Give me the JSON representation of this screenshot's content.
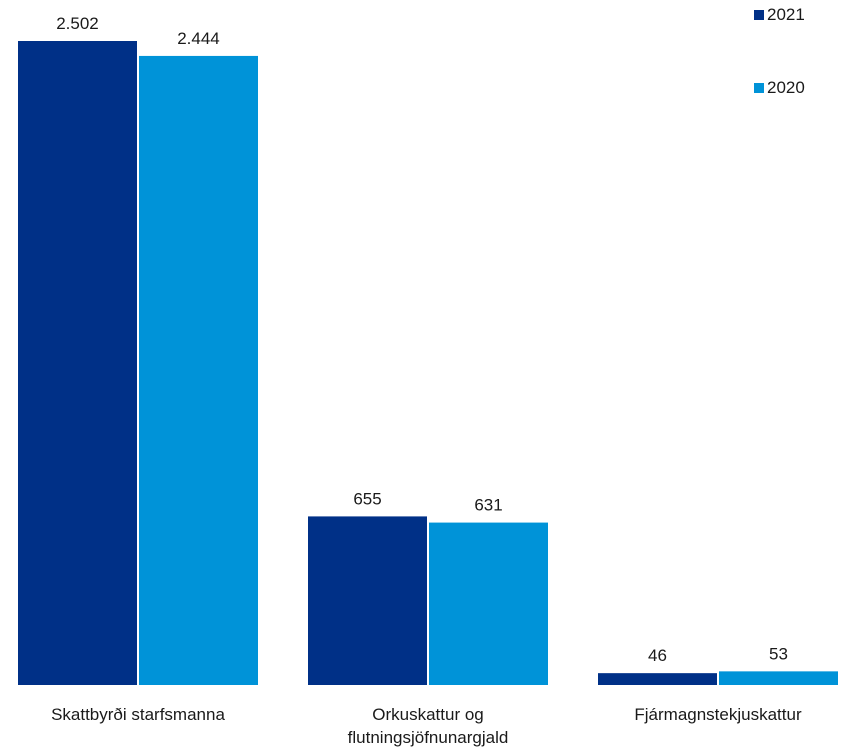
{
  "chart_data": {
    "type": "bar",
    "categories": [
      [
        "Skattbyrði starfsmanna"
      ],
      [
        "Orkuskattur og",
        "flutningsjöfnunargjald"
      ],
      [
        "Fjármagnstekjuskattur"
      ]
    ],
    "series": [
      {
        "name": "2021",
        "values": [
          2502,
          655,
          46
        ],
        "labels": [
          "2.502",
          "655",
          "46"
        ],
        "color": "#003087"
      },
      {
        "name": "2020",
        "values": [
          2444,
          631,
          53
        ],
        "labels": [
          "2.444",
          "631",
          "53"
        ],
        "color": "#0093d8"
      }
    ],
    "ylim": [
      0,
      2502
    ],
    "grid": false,
    "legend_position": "top-right"
  }
}
